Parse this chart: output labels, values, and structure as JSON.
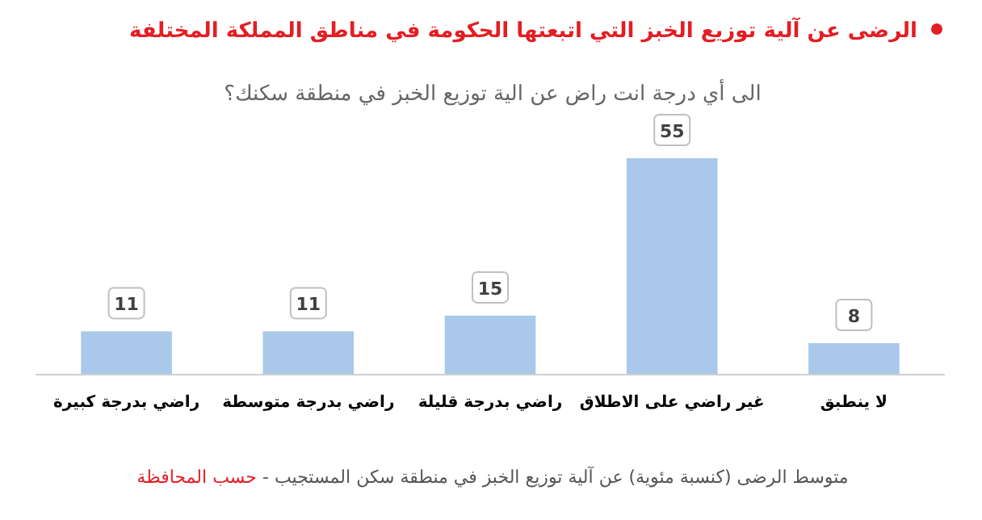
{
  "chart_data": {
    "type": "bar",
    "title": "الرضى عن آلية توزيع الخبز التي اتبعتها الحكومة في مناطق المملكة المختلفة",
    "subtitle": "الى أي درجة انت راض عن الية توزيع الخبز في منطقة سكنك؟",
    "categories": [
      "راضي بدرجة كبيرة",
      "راضي بدرجة متوسطة",
      "راضي بدرجة قليلة",
      "غير راضي على الاطلاق",
      "لا ينطبق"
    ],
    "values": [
      11,
      11,
      15,
      55,
      8
    ],
    "color": "#a9c8ea",
    "data_labels": true,
    "annotations": [
      "متوسط الرضى (كنسبة مئوية) عن آلية توزيع الخبز في منطقة سكن المستجيب -",
      "حسب المحافظة"
    ]
  }
}
